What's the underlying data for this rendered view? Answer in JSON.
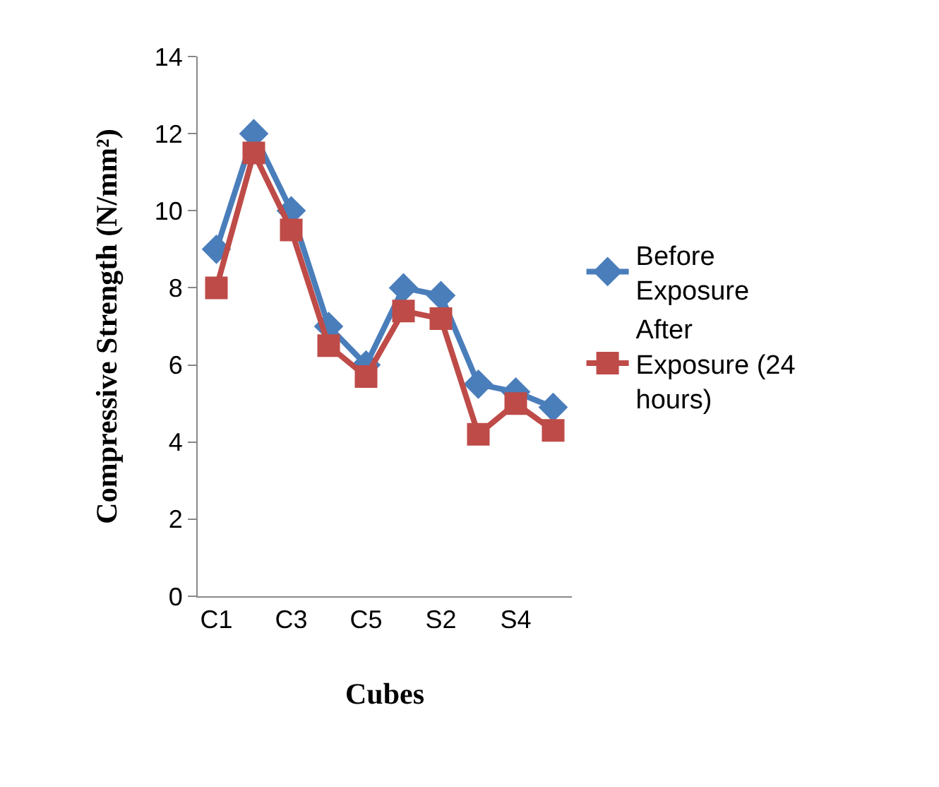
{
  "chart_data": {
    "type": "line",
    "xlabel": "Cubes",
    "ylabel": "Compressive Strength (N/mm²)",
    "categories": [
      "C1",
      null,
      "C3",
      null,
      "C5",
      null,
      "S2",
      null,
      "S4",
      null
    ],
    "series": [
      {
        "name": "Before Exposure",
        "color": "#4a7ebb",
        "marker": "diamond",
        "values": [
          9,
          12,
          10,
          7,
          6,
          8,
          7.8,
          5.5,
          5.3,
          4.9
        ]
      },
      {
        "name": "After Exposure (24 hours)",
        "color": "#be4b48",
        "marker": "square",
        "values": [
          8,
          11.5,
          9.5,
          6.5,
          5.7,
          7.4,
          7.2,
          4.2,
          5.0,
          4.3
        ]
      }
    ],
    "ylim": [
      0,
      14
    ],
    "yticks": [
      0,
      2,
      4,
      6,
      8,
      10,
      12,
      14
    ],
    "legend": "right",
    "line_style": "solid"
  }
}
